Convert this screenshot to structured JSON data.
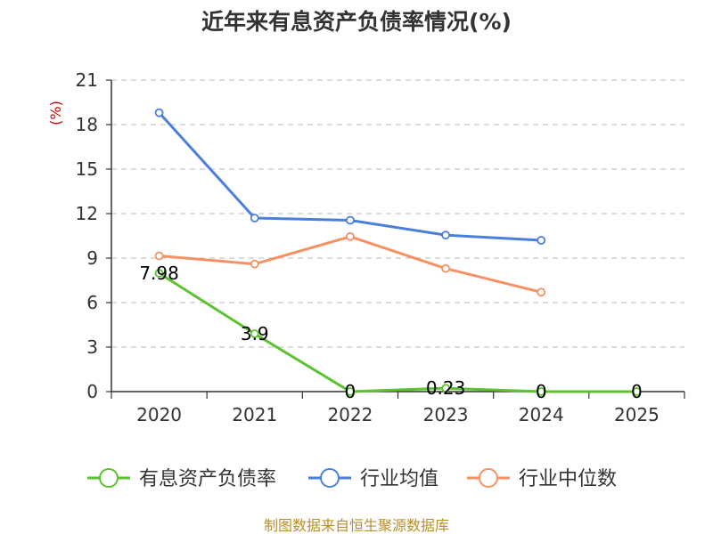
{
  "chart_data": {
    "type": "line",
    "title": "近年来有息资产负债率情况(%)",
    "ylabel": "(%)",
    "categories": [
      "2020",
      "2021",
      "2022",
      "2023",
      "2024",
      "2025"
    ],
    "ylim": [
      0,
      21
    ],
    "yticks": [
      0,
      3,
      6,
      9,
      12,
      15,
      18,
      21
    ],
    "grid": true,
    "legend_position": "bottom",
    "series": [
      {
        "name": "有息资产负债率",
        "color": "#5ac32e",
        "values": [
          7.98,
          3.9,
          0,
          0.23,
          0,
          0
        ],
        "labels": [
          "7.98",
          "3.9",
          "0",
          "0.23",
          "0",
          "0"
        ]
      },
      {
        "name": "行业均值",
        "color": "#4a7fdb",
        "values": [
          18.8,
          11.7,
          11.55,
          10.55,
          10.2,
          null
        ]
      },
      {
        "name": "行业中位数",
        "color": "#f59162",
        "values": [
          9.15,
          8.6,
          10.45,
          8.3,
          6.7,
          null
        ]
      }
    ],
    "source": "制图数据来自恒生聚源数据库"
  }
}
